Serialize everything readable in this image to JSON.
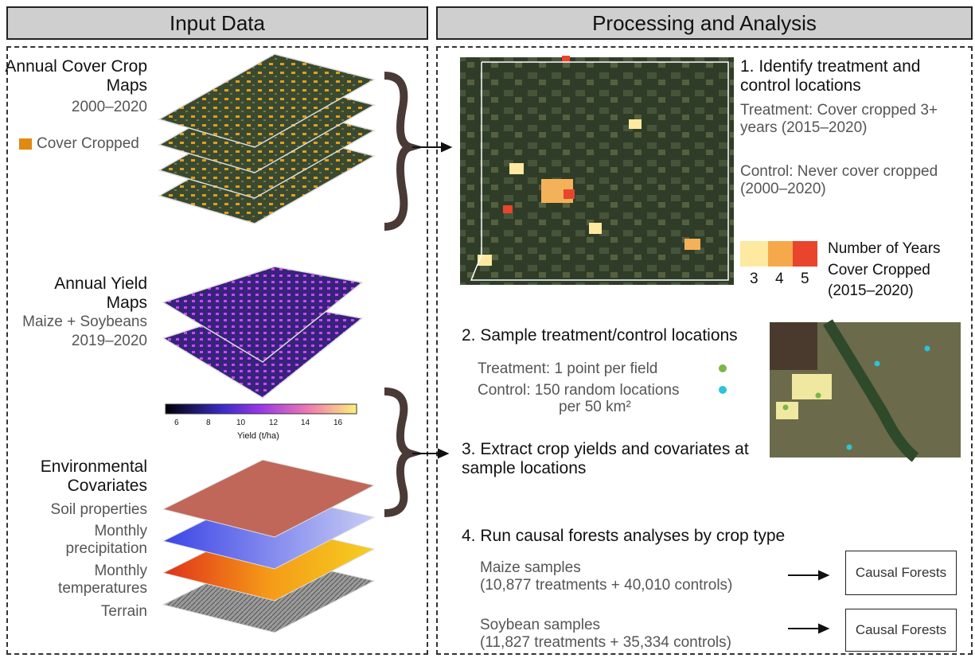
{
  "panels": [
    {
      "title": "Input Data"
    },
    {
      "title": "Processing and Analysis"
    }
  ],
  "inputs": {
    "cover_crop": {
      "title": "Annual Cover Crop Maps",
      "years": "2000–2020",
      "legend": "Cover Cropped"
    },
    "yield": {
      "title": "Annual Yield Maps",
      "crops": "Maize + Soybeans",
      "years": "2019–2020",
      "colorbar_ticks": [
        "6",
        "8",
        "10",
        "12",
        "14",
        "16"
      ],
      "colorbar_label": "Yield (t/ha)"
    },
    "covariates": {
      "title": "Environmental Covariates",
      "layers": [
        "Soil properties",
        "Monthly precipitation",
        "Monthly temperatures",
        "Terrain"
      ]
    }
  },
  "steps": [
    {
      "title": "1. Identify treatment and control locations",
      "treatment": "Treatment: Cover cropped 3+ years (2015–2020)",
      "control": "Control: Never cover cropped (2000–2020)",
      "legend_title": "Number of Years Cover Cropped (2015–2020)",
      "legend_labels": [
        "3",
        "4",
        "5"
      ]
    },
    {
      "title": "2. Sample treatment/control locations",
      "treatment": "Treatment: 1 point per field",
      "control": "Control: 150 random locations",
      "control_cont": "per 50 km²"
    },
    {
      "title": "3. Extract crop yields and covariates at sample locations"
    },
    {
      "title": "4. Run causal forests analyses by crop type",
      "rows": [
        {
          "label": "Maize samples",
          "detail": "(10,877 treatments + 40,010 controls)",
          "box": "Causal Forests"
        },
        {
          "label": "Soybean samples",
          "detail": "(11,827 treatments + 35,334 controls)",
          "box": "Causal Forests"
        }
      ]
    }
  ]
}
